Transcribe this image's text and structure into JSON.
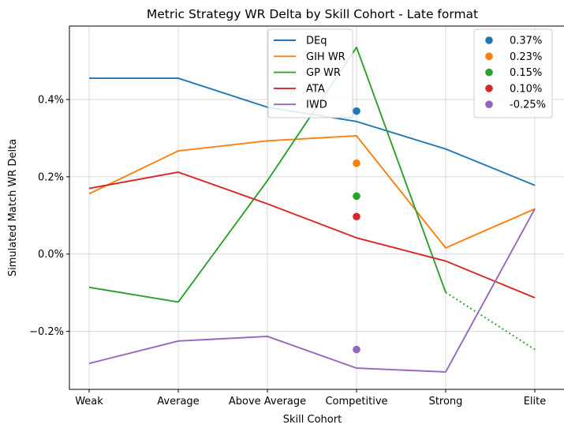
{
  "chart_data": {
    "type": "line",
    "title": "Metric Strategy WR Delta by Skill Cohort - Late format",
    "xlabel": "Skill Cohort",
    "ylabel": "Simulated Match WR Delta",
    "categories": [
      "Weak",
      "Average",
      "Above Average",
      "Competitive",
      "Strong",
      "Elite"
    ],
    "ylim": [
      -0.35,
      0.59
    ],
    "yticks": [
      -0.2,
      0.0,
      0.2,
      0.4
    ],
    "ytick_labels": [
      "−0.2%",
      "0.0%",
      "0.2%",
      "0.4%"
    ],
    "grid": true,
    "series": [
      {
        "name": "DEq",
        "color": "#1f77b4",
        "values": [
          0.455,
          0.455,
          0.38,
          0.343,
          0.272,
          0.178
        ]
      },
      {
        "name": "GIH WR",
        "color": "#ff7f0e",
        "values": [
          0.156,
          0.267,
          0.293,
          0.306,
          0.016,
          0.117
        ]
      },
      {
        "name": "GP WR",
        "color": "#2ca02c",
        "values": [
          -0.086,
          -0.124,
          0.19,
          0.535,
          -0.099,
          -0.247
        ],
        "dotted_from_index": 4
      },
      {
        "name": "ATA",
        "color": "#d62728",
        "values": [
          0.17,
          0.212,
          0.13,
          0.042,
          -0.018,
          -0.113
        ]
      },
      {
        "name": "IWD",
        "color": "#9467bd",
        "values": [
          -0.283,
          -0.225,
          -0.213,
          -0.295,
          -0.305,
          0.117
        ]
      }
    ],
    "markers": [
      {
        "label": "0.37%",
        "color": "#1f77b4",
        "x": "Competitive",
        "y": 0.37
      },
      {
        "label": "0.23%",
        "color": "#ff7f0e",
        "x": "Competitive",
        "y": 0.235
      },
      {
        "label": "0.15%",
        "color": "#2ca02c",
        "x": "Competitive",
        "y": 0.15
      },
      {
        "label": "0.10%",
        "color": "#d62728",
        "x": "Competitive",
        "y": 0.097
      },
      {
        "label": "-0.25%",
        "color": "#9467bd",
        "x": "Competitive",
        "y": -0.247
      }
    ],
    "legend_lines_position": "top-center",
    "legend_markers_position": "top-right"
  }
}
